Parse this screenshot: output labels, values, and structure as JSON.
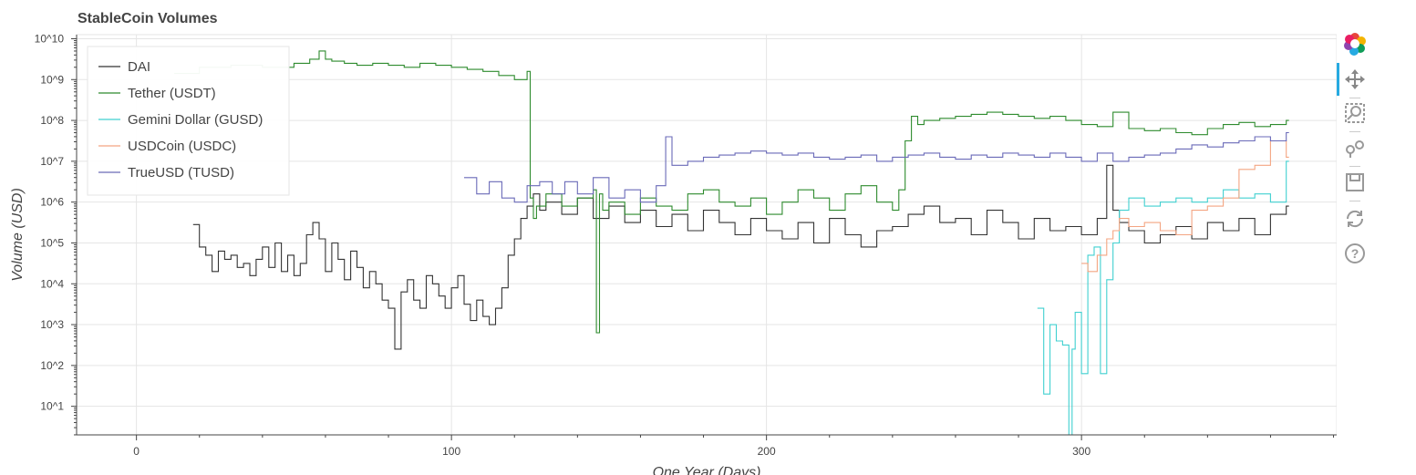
{
  "toolbar": {
    "tools": [
      "bokeh-logo",
      "pan",
      "box-zoom",
      "wheel-zoom",
      "save",
      "reset",
      "help"
    ],
    "active_tool": "pan"
  },
  "chart_data": {
    "type": "line",
    "title": "StableCoin Volumes",
    "xlabel": "One Year (Days)",
    "ylabel": "Volume (USD)",
    "y_scale": "log",
    "xlim": [
      -19,
      381
    ],
    "ylim_exponent": [
      0.3,
      10.1
    ],
    "x_ticks": [
      0,
      100,
      200,
      300
    ],
    "x_tick_labels": [
      "0",
      "100",
      "200",
      "300"
    ],
    "y_tick_exponents": [
      1,
      2,
      3,
      4,
      5,
      6,
      7,
      8,
      9,
      10
    ],
    "y_tick_labels": [
      "10^1",
      "10^2",
      "10^3",
      "10^4",
      "10^5",
      "10^6",
      "10^7",
      "10^8",
      "10^9",
      "10^10"
    ],
    "grid": true,
    "legend_position": "top-left",
    "series_style": "step",
    "series": [
      {
        "name": "DAI",
        "color": "#333333",
        "x": [
          18,
          20,
          22,
          24,
          26,
          28,
          30,
          32,
          34,
          36,
          38,
          40,
          42,
          44,
          46,
          48,
          50,
          52,
          54,
          56,
          58,
          60,
          62,
          64,
          66,
          68,
          70,
          72,
          74,
          76,
          78,
          80,
          82,
          84,
          86,
          88,
          90,
          92,
          94,
          96,
          98,
          100,
          102,
          104,
          106,
          108,
          110,
          112,
          114,
          116,
          118,
          120,
          122,
          124,
          126,
          128,
          130,
          135,
          140,
          145,
          150,
          155,
          160,
          165,
          170,
          175,
          180,
          185,
          190,
          195,
          200,
          205,
          210,
          215,
          220,
          225,
          230,
          235,
          240,
          245,
          250,
          255,
          260,
          265,
          270,
          275,
          280,
          285,
          290,
          295,
          300,
          305,
          308,
          310,
          312,
          315,
          320,
          325,
          330,
          335,
          340,
          345,
          350,
          355,
          360,
          365
        ],
        "log10_y": [
          5.45,
          4.9,
          4.7,
          4.3,
          4.8,
          4.6,
          4.7,
          4.4,
          4.5,
          4.2,
          4.6,
          4.9,
          4.4,
          5.0,
          4.3,
          4.7,
          4.2,
          4.5,
          5.2,
          5.5,
          5.1,
          4.3,
          5.0,
          4.6,
          4.1,
          4.8,
          4.4,
          3.9,
          4.3,
          4.0,
          3.6,
          3.4,
          2.4,
          3.8,
          4.1,
          3.6,
          3.4,
          4.2,
          4.0,
          3.7,
          3.4,
          3.9,
          4.2,
          3.5,
          3.1,
          3.6,
          3.2,
          3.0,
          3.4,
          3.9,
          4.7,
          5.1,
          5.6,
          5.9,
          6.2,
          5.8,
          6.0,
          5.7,
          6.1,
          5.6,
          5.9,
          5.5,
          5.8,
          5.4,
          5.7,
          5.3,
          5.8,
          5.5,
          5.2,
          5.6,
          5.3,
          5.1,
          5.5,
          5.0,
          5.6,
          5.2,
          4.9,
          5.3,
          5.4,
          5.7,
          5.9,
          5.5,
          5.6,
          5.2,
          5.8,
          5.5,
          5.1,
          5.6,
          5.3,
          5.4,
          5.2,
          5.6,
          6.9,
          5.8,
          5.5,
          5.3,
          5.0,
          5.2,
          5.4,
          5.1,
          5.5,
          5.3,
          5.6,
          5.2,
          5.7,
          5.9
        ]
      },
      {
        "name": "Tether (USDT)",
        "color": "#2e8b2e",
        "x": [
          12,
          20,
          30,
          40,
          50,
          55,
          58,
          60,
          62,
          66,
          70,
          75,
          80,
          85,
          90,
          95,
          100,
          105,
          110,
          115,
          120,
          124,
          125,
          126,
          127,
          130,
          135,
          140,
          145,
          146,
          147,
          148,
          150,
          155,
          160,
          165,
          170,
          175,
          180,
          185,
          190,
          195,
          200,
          205,
          210,
          215,
          220,
          225,
          230,
          235,
          240,
          242,
          244,
          246,
          248,
          250,
          255,
          260,
          265,
          270,
          275,
          280,
          285,
          290,
          295,
          300,
          305,
          310,
          315,
          320,
          325,
          330,
          335,
          340,
          345,
          350,
          355,
          360,
          365
        ],
        "log10_y": [
          9.15,
          9.3,
          9.35,
          9.3,
          9.4,
          9.5,
          9.7,
          9.5,
          9.45,
          9.4,
          9.35,
          9.4,
          9.35,
          9.3,
          9.4,
          9.35,
          9.3,
          9.25,
          9.2,
          9.1,
          9.0,
          9.2,
          6.1,
          5.6,
          5.9,
          6.2,
          5.9,
          6.1,
          6.3,
          2.8,
          6.2,
          5.8,
          6.0,
          5.7,
          6.1,
          5.9,
          5.8,
          6.2,
          6.3,
          6.0,
          5.9,
          6.1,
          5.7,
          6.0,
          6.3,
          6.1,
          5.8,
          6.2,
          6.4,
          6.0,
          5.8,
          6.3,
          7.5,
          8.1,
          7.9,
          8.0,
          8.05,
          8.1,
          8.15,
          8.2,
          8.15,
          8.1,
          8.05,
          8.1,
          8.0,
          7.9,
          7.85,
          8.2,
          7.8,
          7.75,
          7.8,
          7.7,
          7.65,
          7.8,
          7.9,
          7.95,
          7.85,
          7.9,
          8.0
        ]
      },
      {
        "name": "Gemini Dollar (GUSD)",
        "color": "#40d0d0",
        "x": [
          286,
          288,
          290,
          292,
          294,
          296,
          297,
          298,
          300,
          302,
          304,
          306,
          308,
          310,
          312,
          315,
          320,
          325,
          330,
          335,
          340,
          345,
          350,
          355,
          360,
          365
        ],
        "log10_y": [
          3.4,
          1.3,
          3.0,
          2.6,
          2.5,
          0.2,
          2.4,
          3.3,
          1.8,
          4.7,
          4.9,
          1.8,
          4.1,
          5.0,
          5.8,
          6.1,
          5.9,
          6.0,
          6.1,
          6.0,
          6.1,
          6.3,
          6.1,
          6.2,
          6.0,
          7.0
        ]
      },
      {
        "name": "USDCoin (USDC)",
        "color": "#f4a582",
        "x": [
          300,
          302,
          305,
          308,
          310,
          312,
          315,
          320,
          325,
          330,
          335,
          340,
          345,
          350,
          355,
          360,
          365
        ],
        "log10_y": [
          4.5,
          4.3,
          4.7,
          5.1,
          5.3,
          5.6,
          5.4,
          5.5,
          5.3,
          5.2,
          5.8,
          5.9,
          6.1,
          6.8,
          6.9,
          7.5,
          7.1
        ]
      },
      {
        "name": "TrueUSD (TUSD)",
        "color": "#6a6ab8",
        "x": [
          104,
          108,
          112,
          116,
          120,
          124,
          128,
          132,
          136,
          140,
          145,
          150,
          155,
          160,
          165,
          168,
          170,
          175,
          180,
          185,
          190,
          195,
          200,
          205,
          210,
          215,
          220,
          225,
          230,
          235,
          240,
          245,
          250,
          255,
          260,
          265,
          270,
          275,
          280,
          285,
          290,
          295,
          300,
          305,
          310,
          315,
          320,
          325,
          330,
          335,
          340,
          345,
          350,
          355,
          360,
          365
        ],
        "log10_y": [
          6.6,
          6.2,
          6.5,
          6.1,
          6.0,
          6.4,
          6.5,
          6.2,
          6.5,
          6.2,
          6.6,
          6.1,
          6.3,
          6.0,
          6.4,
          7.6,
          6.9,
          7.0,
          7.1,
          7.15,
          7.2,
          7.25,
          7.2,
          7.15,
          7.2,
          7.1,
          7.05,
          7.1,
          7.15,
          7.0,
          7.1,
          7.15,
          7.2,
          7.1,
          7.05,
          7.15,
          7.1,
          7.2,
          7.15,
          7.1,
          7.2,
          7.1,
          7.0,
          7.2,
          7.0,
          7.1,
          7.15,
          7.2,
          7.3,
          7.4,
          7.35,
          7.45,
          7.5,
          7.6,
          7.5,
          7.7
        ]
      }
    ]
  }
}
